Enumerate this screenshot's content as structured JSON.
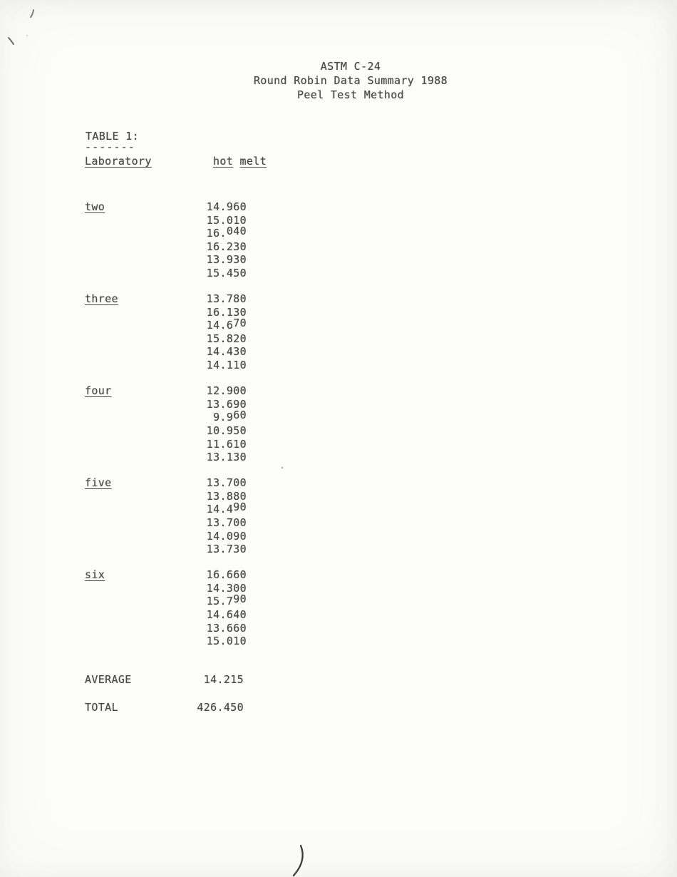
{
  "document": {
    "header_lines": [
      "ASTM C-24",
      "Round Robin Data Summary 1988",
      "Peel Test Method"
    ],
    "table": {
      "title": "TABLE 1:",
      "title_underline": "-------",
      "column_headers": {
        "laboratory": "Laboratory",
        "hot_melt": "hot melt"
      },
      "labs": [
        {
          "name": "two",
          "values": [
            "14.960",
            "15.010",
            "16.040",
            "16.230",
            "13.930",
            "15.450"
          ]
        },
        {
          "name": "three",
          "values": [
            "13.780",
            "16.130",
            "14.670",
            "15.820",
            "14.430",
            "14.110"
          ]
        },
        {
          "name": "four",
          "values": [
            "12.900",
            "13.690",
            "9.960",
            "10.950",
            "11.610",
            "13.130"
          ]
        },
        {
          "name": "five",
          "values": [
            "13.700",
            "13.880",
            "14.490",
            "13.700",
            "14.090",
            "13.730"
          ]
        },
        {
          "name": "six",
          "values": [
            "16.660",
            "14.300",
            "15.790",
            "14.640",
            "13.660",
            "15.010"
          ]
        }
      ],
      "summary": [
        {
          "label": "AVERAGE",
          "value": "14.215"
        },
        {
          "label": "TOTAL",
          "value": "426.450"
        }
      ]
    },
    "annotations": {
      "pen_mark_bottom": ")",
      "pen_tick_top_left": "'",
      "pen_tick_left_margin": "\\"
    },
    "colors": {
      "ink": "#4a4a4a",
      "paper": "#fcfcfb",
      "pen": "#3c3c3c"
    }
  }
}
